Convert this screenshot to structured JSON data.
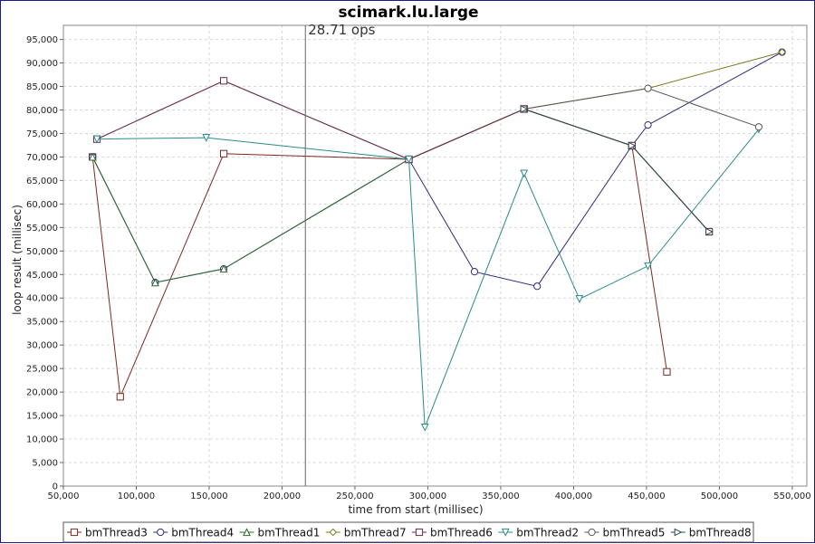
{
  "chart_data": {
    "type": "line",
    "title": "scimark.lu.large",
    "xlabel": "time from start (millisec)",
    "ylabel": "loop result (millisec)",
    "xlim": [
      50000,
      560000
    ],
    "ylim": [
      0,
      98000
    ],
    "x_ticks": [
      50000,
      100000,
      150000,
      200000,
      250000,
      300000,
      350000,
      400000,
      450000,
      500000,
      550000
    ],
    "x_tick_labels": [
      "50,000",
      "100,000",
      "150,000",
      "200,000",
      "250,000",
      "300,000",
      "350,000",
      "400,000",
      "450,000",
      "500,000",
      "550,000"
    ],
    "y_ticks": [
      0,
      5000,
      10000,
      15000,
      20000,
      25000,
      30000,
      35000,
      40000,
      45000,
      50000,
      55000,
      60000,
      65000,
      70000,
      75000,
      80000,
      85000,
      90000,
      95000
    ],
    "y_tick_labels": [
      "0",
      "5,000",
      "10,000",
      "15,000",
      "20,000",
      "25,000",
      "30,000",
      "35,000",
      "40,000",
      "45,000",
      "50,000",
      "55,000",
      "60,000",
      "65,000",
      "70,000",
      "75,000",
      "80,000",
      "85,000",
      "90,000",
      "95,000"
    ],
    "grid": true,
    "legend_position": "bottom",
    "annotation": {
      "x": 216000,
      "label": "28.71 ops"
    },
    "series": [
      {
        "name": "bmThread3",
        "color": "#7a2a22",
        "marker": "square",
        "points": [
          [
            70000,
            70000
          ],
          [
            89000,
            19000
          ],
          [
            160000,
            70700
          ],
          [
            287000,
            69500
          ],
          [
            366000,
            80200
          ],
          [
            440000,
            72400
          ],
          [
            464000,
            24300
          ]
        ]
      },
      {
        "name": "bmThread4",
        "color": "#2a2a7a",
        "marker": "circle",
        "points": [
          [
            70000,
            70000
          ],
          [
            113000,
            43300
          ],
          [
            160000,
            46200
          ],
          [
            287000,
            69500
          ],
          [
            332000,
            45600
          ],
          [
            375000,
            42500
          ],
          [
            440000,
            72400
          ],
          [
            451000,
            76800
          ],
          [
            543000,
            92300
          ]
        ]
      },
      {
        "name": "bmThread1",
        "color": "#2a6a2a",
        "marker": "triangle-up",
        "points": [
          [
            70000,
            70000
          ],
          [
            113000,
            43300
          ],
          [
            160000,
            46200
          ],
          [
            287000,
            69500
          ],
          [
            366000,
            80200
          ],
          [
            440000,
            72400
          ],
          [
            493000,
            54100
          ]
        ]
      },
      {
        "name": "bmThread7",
        "color": "#7a7a22",
        "marker": "diamond",
        "points": [
          [
            73000,
            73800
          ],
          [
            160000,
            86200
          ],
          [
            287000,
            69500
          ],
          [
            366000,
            80200
          ],
          [
            451000,
            84600
          ],
          [
            543000,
            92300
          ]
        ]
      },
      {
        "name": "bmThread6",
        "color": "#6a2a4a",
        "marker": "square",
        "points": [
          [
            73000,
            73800
          ],
          [
            160000,
            86200
          ],
          [
            287000,
            69500
          ],
          [
            366000,
            80200
          ],
          [
            440000,
            72400
          ],
          [
            493000,
            54100
          ]
        ]
      },
      {
        "name": "bmThread2",
        "color": "#2a8a8a",
        "marker": "triangle-down",
        "points": [
          [
            73000,
            73800
          ],
          [
            148000,
            74100
          ],
          [
            287000,
            69500
          ],
          [
            298000,
            12500
          ],
          [
            366000,
            66500
          ],
          [
            404000,
            39800
          ],
          [
            451000,
            46800
          ],
          [
            527000,
            75900
          ]
        ]
      },
      {
        "name": "bmThread5",
        "color": "#555555",
        "marker": "circle",
        "points": [
          [
            366000,
            80200
          ],
          [
            451000,
            84600
          ],
          [
            527000,
            76400
          ]
        ]
      },
      {
        "name": "bmThread8",
        "color": "#2a4a4a",
        "marker": "triangle-right",
        "points": [
          [
            366000,
            80200
          ],
          [
            440000,
            72400
          ],
          [
            493000,
            54100
          ]
        ]
      }
    ]
  }
}
